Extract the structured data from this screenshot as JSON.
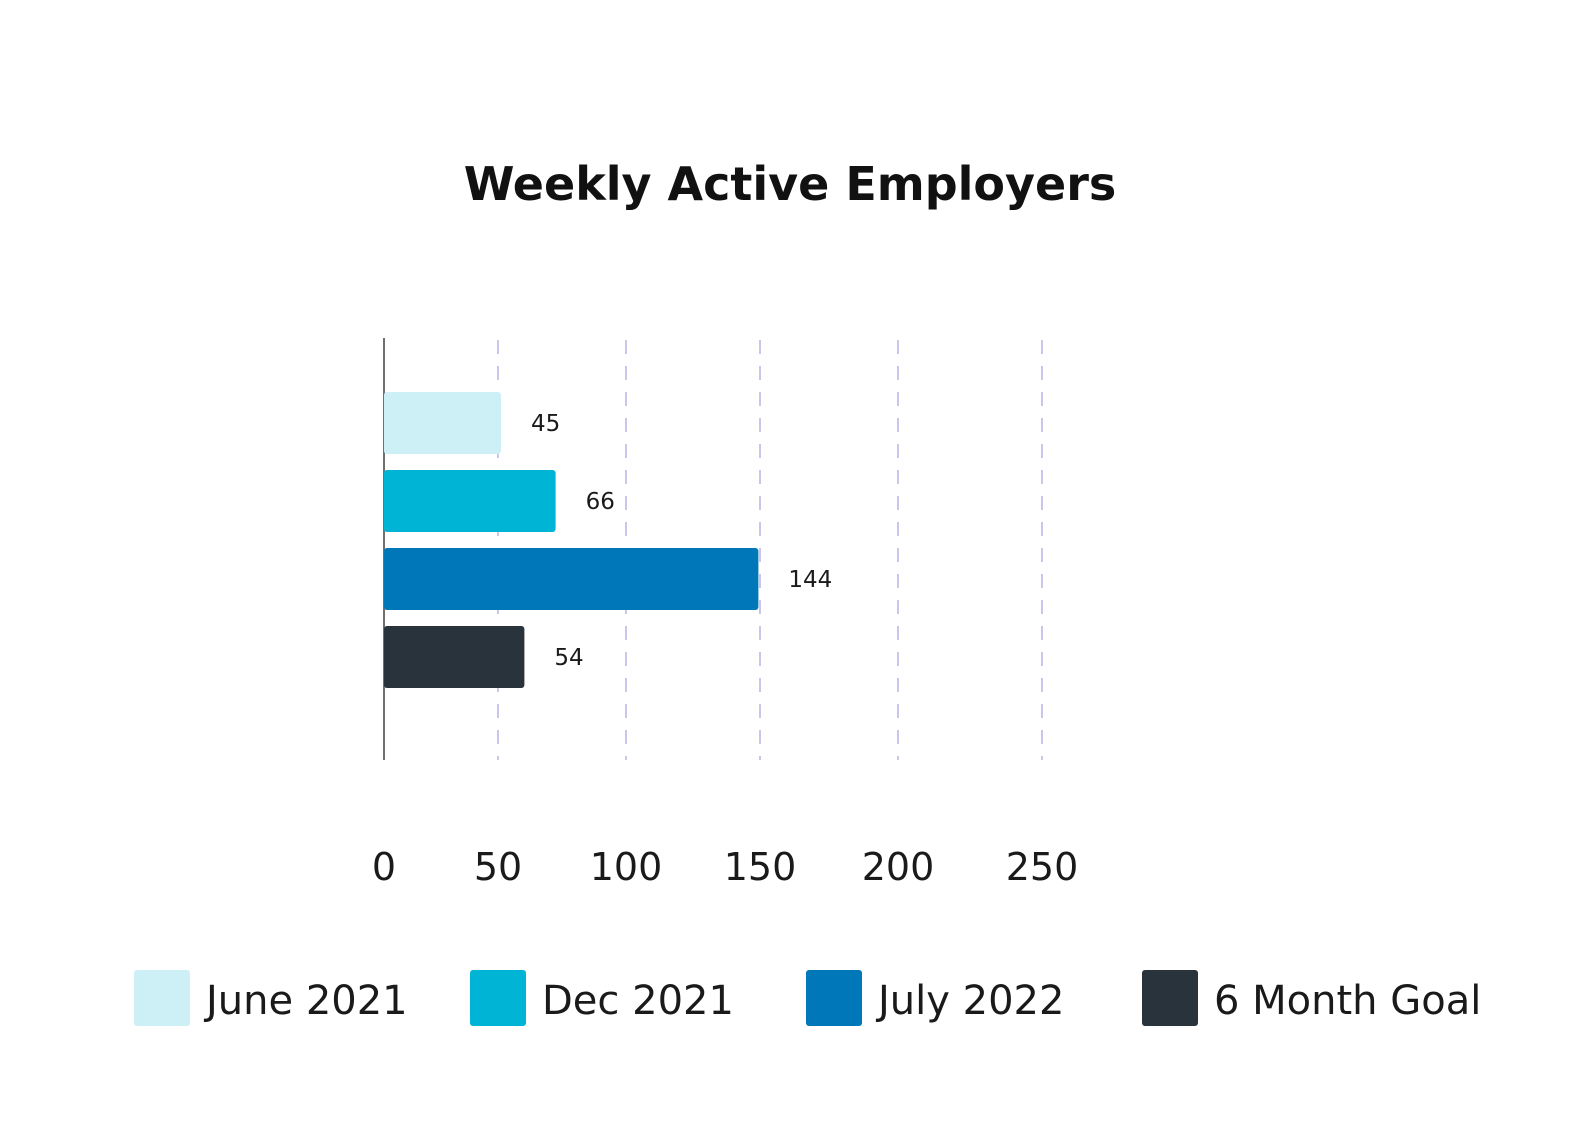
{
  "chart_data": {
    "type": "bar",
    "orientation": "horizontal",
    "title": "Weekly Active Employers",
    "xlabel": "",
    "ylabel": "",
    "xlim": [
      0,
      250
    ],
    "x_ticks": [
      "0",
      "50",
      "100",
      "150",
      "200",
      "250"
    ],
    "grid": true,
    "legend_position": "bottom",
    "categories": [
      "June 2021",
      "Dec 2021",
      "July 2022",
      "6 Month Goal"
    ],
    "values": [
      45,
      66,
      144,
      54
    ],
    "value_labels": [
      "45",
      "66",
      "144",
      "54"
    ],
    "colors": [
      "#cdf0f7",
      "#00b4d6",
      "#0077b8",
      "#29333b"
    ]
  }
}
